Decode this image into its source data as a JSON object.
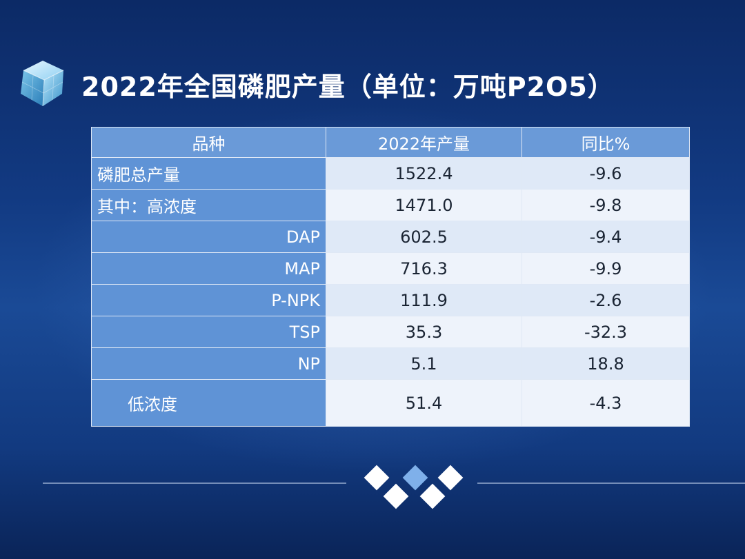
{
  "slide": {
    "title": "2022年全国磷肥产量（单位：万吨P2O5）",
    "colors": {
      "background": "#123a82",
      "header": "#6a9ad8",
      "label_cell": "#5f93d6",
      "value_cell": "#dfe9f7",
      "accent_diamond": "#7fb0ea"
    },
    "icons": [
      "crystal-cube-icon",
      "diamond-cluster-icon"
    ]
  },
  "table": {
    "headers": [
      "品种",
      "2022年产量",
      "同比%"
    ],
    "rows": [
      {
        "name": "磷肥总产量",
        "production": "1522.4",
        "yoy": "-9.6"
      },
      {
        "name": "其中：高浓度",
        "production": "1471.0",
        "yoy": "-9.8"
      },
      {
        "name": "DAP",
        "production": "602.5",
        "yoy": "-9.4"
      },
      {
        "name": "MAP",
        "production": "716.3",
        "yoy": "-9.9"
      },
      {
        "name": "P-NPK",
        "production": "111.9",
        "yoy": "-2.6"
      },
      {
        "name": "TSP",
        "production": "35.3",
        "yoy": "-32.3"
      },
      {
        "name": "NP",
        "production": "5.1",
        "yoy": "18.8"
      },
      {
        "name": "低浓度",
        "production": "51.4",
        "yoy": "-4.3"
      }
    ]
  }
}
